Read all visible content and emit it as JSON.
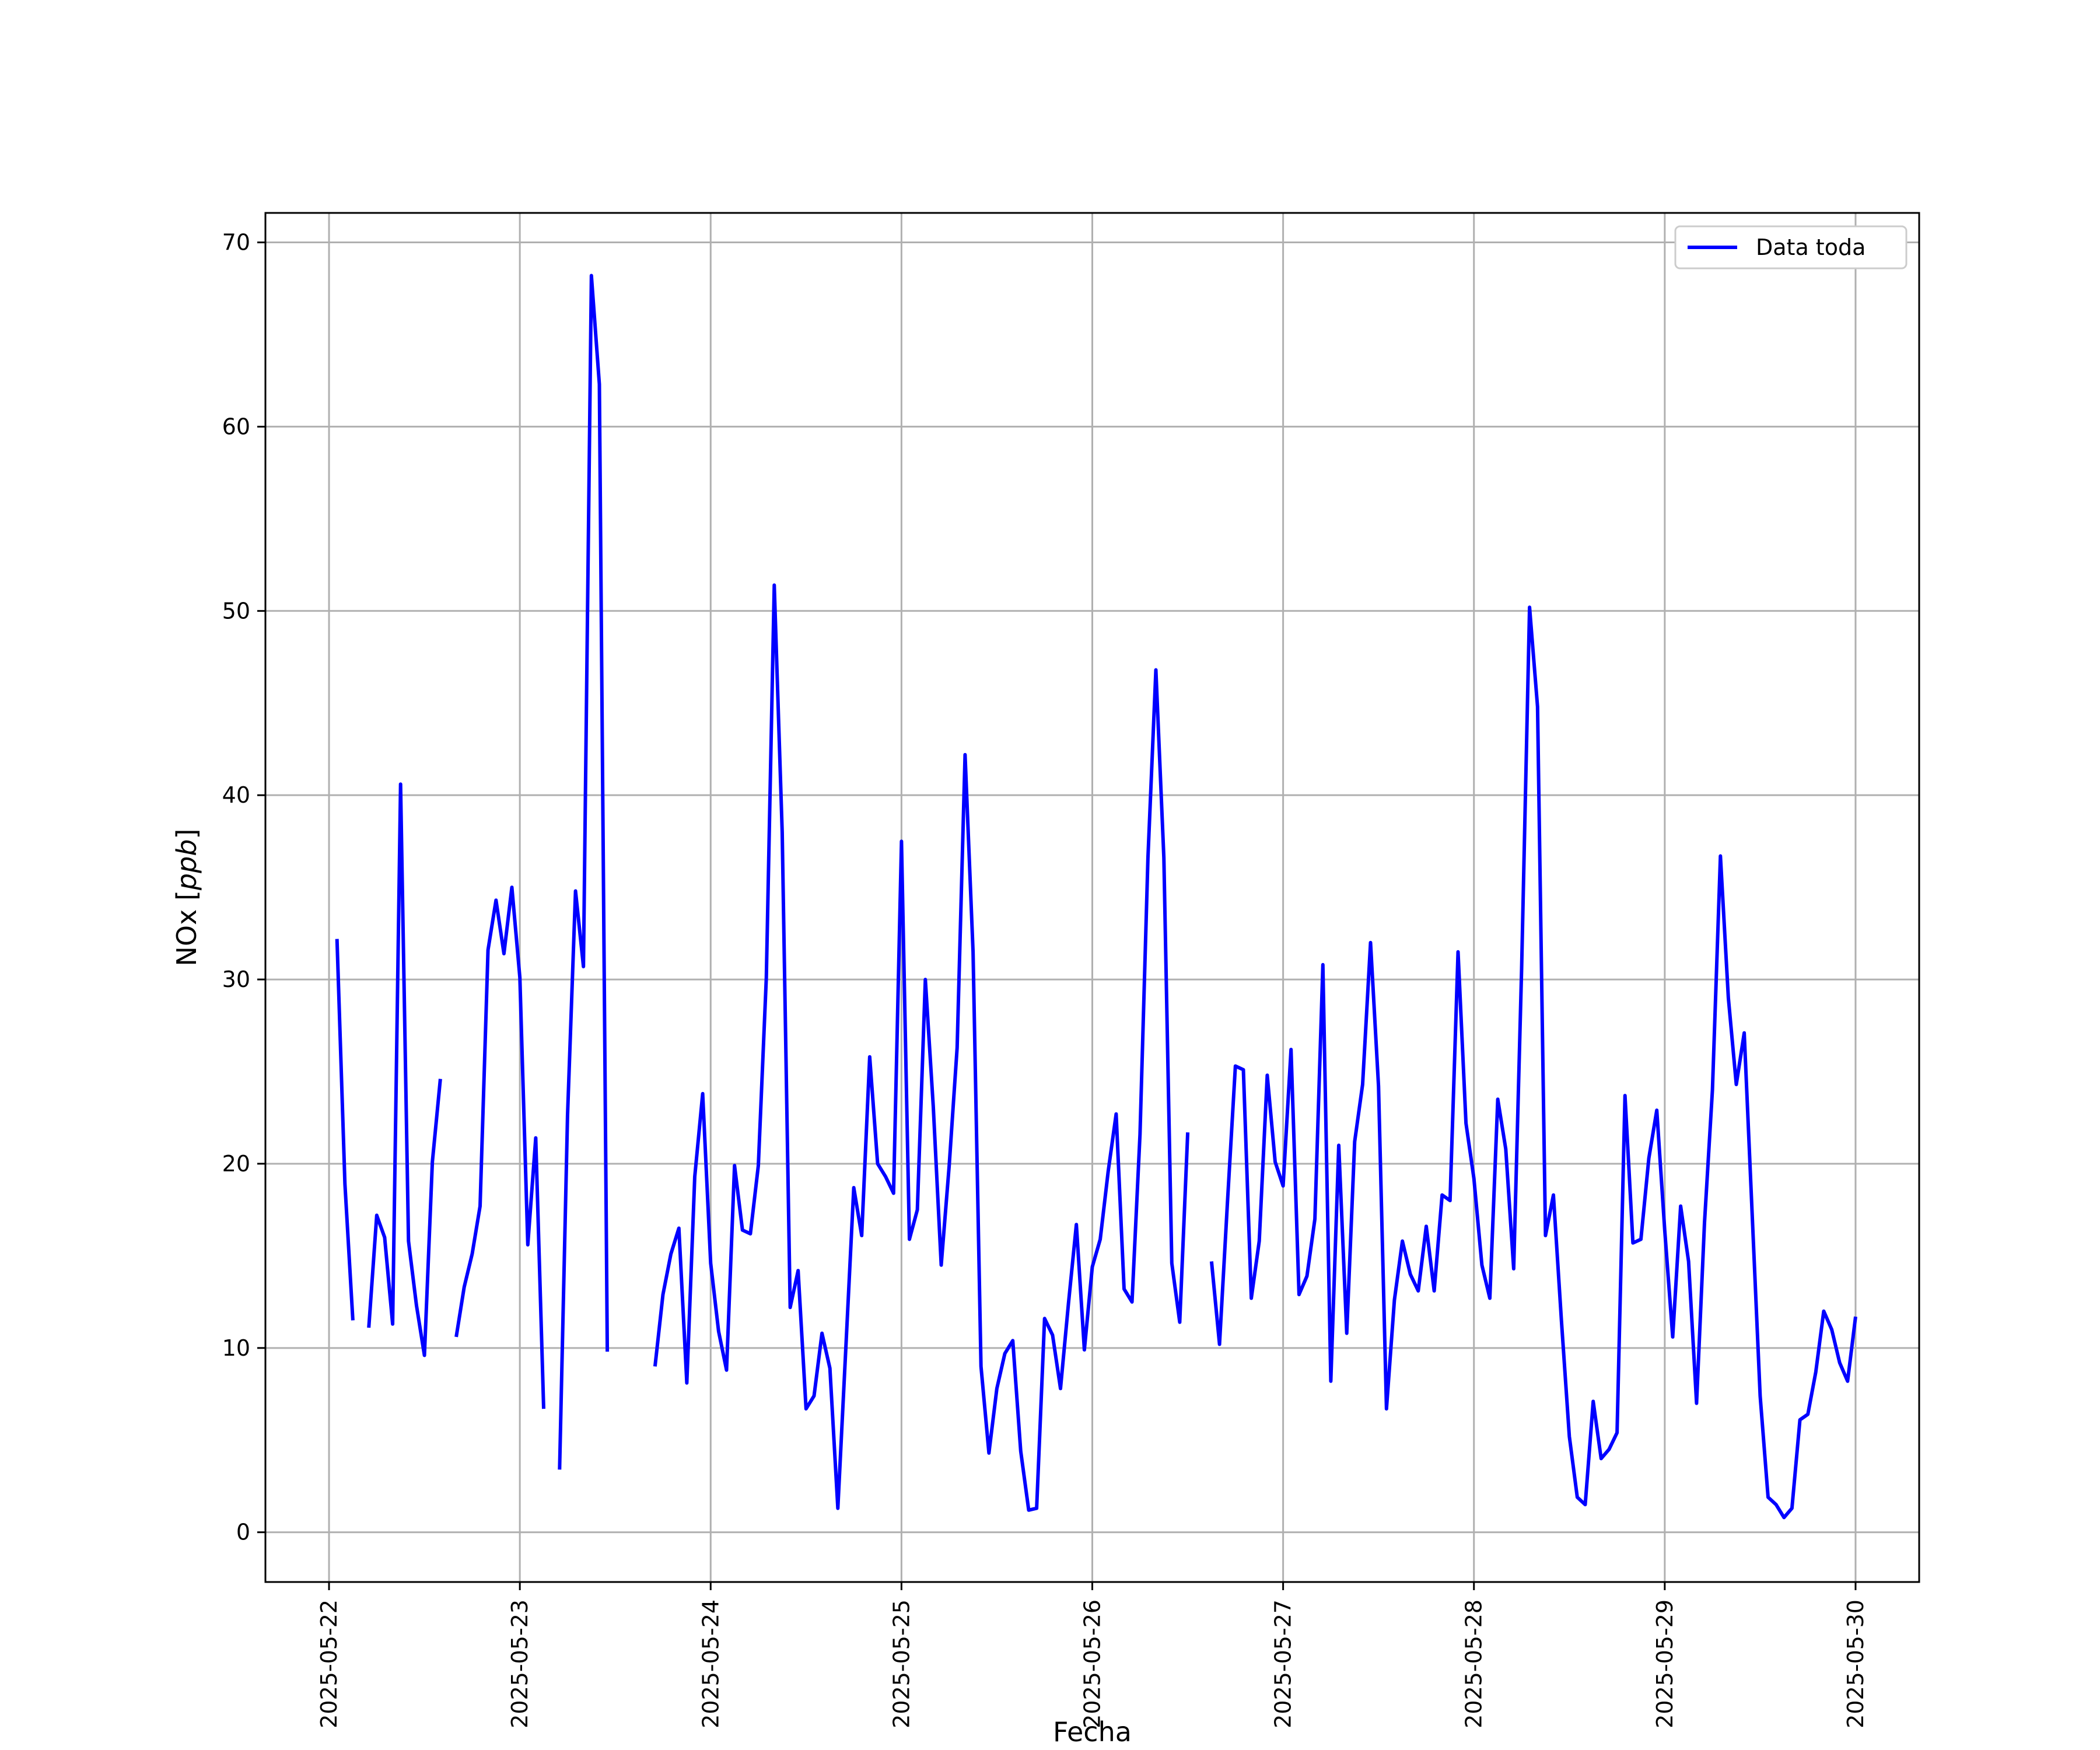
{
  "chart_data": {
    "type": "line",
    "title": "",
    "xlabel": "Fecha",
    "ylabel": "NOx [ppb]",
    "ylabel_parts": {
      "main": "NOx ",
      "open": "[",
      "unit": "ppb",
      "close": "]"
    },
    "x_ticks": [
      "2025-05-22",
      "2025-05-23",
      "2025-05-24",
      "2025-05-25",
      "2025-05-26",
      "2025-05-27",
      "2025-05-28",
      "2025-05-29",
      "2025-05-30"
    ],
    "xlim": [
      "2025-05-21T16:00",
      "2025-05-30T08:00"
    ],
    "y_ticks": [
      0,
      10,
      20,
      30,
      40,
      50,
      60,
      70
    ],
    "ylim": [
      -2.7,
      71.6
    ],
    "grid": true,
    "legend_position": "top-right",
    "colors": {
      "line": "#0000ff",
      "grid": "#b0b0b0",
      "axis": "#000000"
    },
    "series": [
      {
        "name": "Data toda",
        "segments": [
          [
            [
              "2025-05-22T01:00",
              32.2
            ],
            [
              "2025-05-22T02:00",
              18.9
            ],
            [
              "2025-05-22T03:00",
              11.5
            ]
          ],
          [
            [
              "2025-05-22T05:00",
              11.1
            ],
            [
              "2025-05-22T06:00",
              17.2
            ],
            [
              "2025-05-22T07:00",
              16.0
            ],
            [
              "2025-05-22T08:00",
              11.3
            ],
            [
              "2025-05-22T09:00",
              40.6
            ],
            [
              "2025-05-22T10:00",
              15.8
            ],
            [
              "2025-05-22T11:00",
              12.3
            ],
            [
              "2025-05-22T12:00",
              9.6
            ],
            [
              "2025-05-22T13:00",
              20.1
            ],
            [
              "2025-05-22T14:00",
              24.6
            ]
          ],
          [
            [
              "2025-05-22T16:00",
              10.6
            ],
            [
              "2025-05-22T17:00",
              13.3
            ],
            [
              "2025-05-22T18:00",
              15.1
            ],
            [
              "2025-05-22T19:00",
              17.7
            ],
            [
              "2025-05-22T20:00",
              31.6
            ],
            [
              "2025-05-22T21:00",
              34.3
            ],
            [
              "2025-05-22T22:00",
              31.4
            ],
            [
              "2025-05-22T23:00",
              35.0
            ],
            [
              "2025-05-23T00:00",
              30.1
            ],
            [
              "2025-05-23T01:00",
              15.6
            ],
            [
              "2025-05-23T02:00",
              21.4
            ],
            [
              "2025-05-23T03:00",
              6.7
            ]
          ],
          [
            [
              "2025-05-23T05:00",
              3.4
            ],
            [
              "2025-05-23T06:00",
              22.6
            ],
            [
              "2025-05-23T07:00",
              34.8
            ],
            [
              "2025-05-23T08:00",
              30.7
            ],
            [
              "2025-05-23T09:00",
              68.2
            ],
            [
              "2025-05-23T10:00",
              62.3
            ],
            [
              "2025-05-23T11:00",
              9.8
            ]
          ],
          [
            [
              "2025-05-23T17:00",
              9.0
            ],
            [
              "2025-05-23T18:00",
              12.9
            ],
            [
              "2025-05-23T19:00",
              15.1
            ],
            [
              "2025-05-23T20:00",
              16.5
            ],
            [
              "2025-05-23T21:00",
              8.1
            ],
            [
              "2025-05-23T22:00",
              19.3
            ],
            [
              "2025-05-23T23:00",
              23.8
            ],
            [
              "2025-05-24T00:00",
              14.6
            ],
            [
              "2025-05-24T01:00",
              10.9
            ],
            [
              "2025-05-24T02:00",
              8.8
            ],
            [
              "2025-05-24T03:00",
              19.9
            ],
            [
              "2025-05-24T04:00",
              16.4
            ],
            [
              "2025-05-24T05:00",
              16.2
            ],
            [
              "2025-05-24T06:00",
              19.9
            ],
            [
              "2025-05-24T07:00",
              30.1
            ],
            [
              "2025-05-24T08:00",
              51.4
            ],
            [
              "2025-05-24T09:00",
              38.0
            ],
            [
              "2025-05-24T10:00",
              12.2
            ],
            [
              "2025-05-24T11:00",
              14.2
            ],
            [
              "2025-05-24T12:00",
              6.7
            ],
            [
              "2025-05-24T13:00",
              7.4
            ],
            [
              "2025-05-24T14:00",
              10.8
            ],
            [
              "2025-05-24T15:00",
              8.9
            ],
            [
              "2025-05-24T16:00",
              1.3
            ],
            [
              "2025-05-24T17:00",
              10.0
            ],
            [
              "2025-05-24T18:00",
              18.7
            ],
            [
              "2025-05-24T19:00",
              16.1
            ],
            [
              "2025-05-24T20:00",
              25.8
            ],
            [
              "2025-05-24T21:00",
              20.0
            ],
            [
              "2025-05-24T22:00",
              19.3
            ],
            [
              "2025-05-24T23:00",
              18.4
            ],
            [
              "2025-05-25T00:00",
              37.5
            ],
            [
              "2025-05-25T01:00",
              15.9
            ],
            [
              "2025-05-25T02:00",
              17.5
            ],
            [
              "2025-05-25T03:00",
              30.0
            ],
            [
              "2025-05-25T04:00",
              23.1
            ],
            [
              "2025-05-25T05:00",
              14.5
            ],
            [
              "2025-05-25T06:00",
              19.9
            ],
            [
              "2025-05-25T07:00",
              26.3
            ],
            [
              "2025-05-25T08:00",
              42.2
            ],
            [
              "2025-05-25T09:00",
              31.5
            ],
            [
              "2025-05-25T10:00",
              9.0
            ],
            [
              "2025-05-25T11:00",
              4.3
            ],
            [
              "2025-05-25T12:00",
              7.8
            ],
            [
              "2025-05-25T13:00",
              9.7
            ],
            [
              "2025-05-25T14:00",
              10.4
            ],
            [
              "2025-05-25T15:00",
              4.4
            ],
            [
              "2025-05-25T16:00",
              1.2
            ],
            [
              "2025-05-25T17:00",
              1.3
            ],
            [
              "2025-05-25T18:00",
              11.6
            ],
            [
              "2025-05-25T19:00",
              10.7
            ],
            [
              "2025-05-25T20:00",
              7.8
            ],
            [
              "2025-05-25T21:00",
              12.4
            ],
            [
              "2025-05-25T22:00",
              16.7
            ],
            [
              "2025-05-25T23:00",
              9.9
            ],
            [
              "2025-05-26T00:00",
              14.4
            ],
            [
              "2025-05-26T01:00",
              15.9
            ],
            [
              "2025-05-26T02:00",
              19.6
            ],
            [
              "2025-05-26T03:00",
              22.7
            ],
            [
              "2025-05-26T04:00",
              13.2
            ],
            [
              "2025-05-26T05:00",
              12.5
            ],
            [
              "2025-05-26T06:00",
              21.6
            ],
            [
              "2025-05-26T07:00",
              36.6
            ],
            [
              "2025-05-26T08:00",
              46.8
            ],
            [
              "2025-05-26T09:00",
              36.6
            ],
            [
              "2025-05-26T10:00",
              14.6
            ],
            [
              "2025-05-26T11:00",
              11.4
            ],
            [
              "2025-05-26T12:00",
              21.7
            ]
          ],
          [
            [
              "2025-05-26T15:00",
              14.7
            ],
            [
              "2025-05-26T16:00",
              10.2
            ],
            [
              "2025-05-26T17:00",
              17.9
            ],
            [
              "2025-05-26T18:00",
              25.3
            ],
            [
              "2025-05-26T19:00",
              25.1
            ],
            [
              "2025-05-26T20:00",
              12.7
            ],
            [
              "2025-05-26T21:00",
              15.8
            ],
            [
              "2025-05-26T22:00",
              24.8
            ],
            [
              "2025-05-26T23:00",
              20.1
            ],
            [
              "2025-05-27T00:00",
              18.8
            ],
            [
              "2025-05-27T01:00",
              26.2
            ],
            [
              "2025-05-27T02:00",
              12.9
            ],
            [
              "2025-05-27T03:00",
              13.9
            ],
            [
              "2025-05-27T04:00",
              17.0
            ],
            [
              "2025-05-27T05:00",
              30.8
            ],
            [
              "2025-05-27T06:00",
              8.2
            ],
            [
              "2025-05-27T07:00",
              21.0
            ],
            [
              "2025-05-27T08:00",
              10.8
            ],
            [
              "2025-05-27T09:00",
              21.2
            ],
            [
              "2025-05-27T10:00",
              24.3
            ],
            [
              "2025-05-27T11:00",
              32.0
            ],
            [
              "2025-05-27T12:00",
              24.2
            ],
            [
              "2025-05-27T13:00",
              6.7
            ],
            [
              "2025-05-27T14:00",
              12.6
            ],
            [
              "2025-05-27T15:00",
              15.8
            ],
            [
              "2025-05-27T16:00",
              14.0
            ],
            [
              "2025-05-27T17:00",
              13.1
            ],
            [
              "2025-05-27T18:00",
              16.6
            ],
            [
              "2025-05-27T19:00",
              13.1
            ],
            [
              "2025-05-27T20:00",
              18.3
            ],
            [
              "2025-05-27T21:00",
              18.0
            ],
            [
              "2025-05-27T22:00",
              31.5
            ],
            [
              "2025-05-27T23:00",
              22.2
            ],
            [
              "2025-05-28T00:00",
              19.2
            ],
            [
              "2025-05-28T01:00",
              14.5
            ],
            [
              "2025-05-28T02:00",
              12.7
            ],
            [
              "2025-05-28T03:00",
              23.5
            ],
            [
              "2025-05-28T04:00",
              20.8
            ],
            [
              "2025-05-28T05:00",
              14.3
            ],
            [
              "2025-05-28T06:00",
              30.6
            ],
            [
              "2025-05-28T07:00",
              50.2
            ],
            [
              "2025-05-28T08:00",
              44.8
            ],
            [
              "2025-05-28T09:00",
              16.1
            ],
            [
              "2025-05-28T10:00",
              18.3
            ],
            [
              "2025-05-28T11:00",
              11.5
            ],
            [
              "2025-05-28T12:00",
              5.2
            ],
            [
              "2025-05-28T13:00",
              1.9
            ],
            [
              "2025-05-28T14:00",
              1.5
            ],
            [
              "2025-05-28T15:00",
              7.1
            ],
            [
              "2025-05-28T16:00",
              4.0
            ],
            [
              "2025-05-28T17:00",
              4.5
            ],
            [
              "2025-05-28T18:00",
              5.4
            ],
            [
              "2025-05-28T19:00",
              23.7
            ],
            [
              "2025-05-28T20:00",
              15.7
            ],
            [
              "2025-05-28T21:00",
              15.9
            ],
            [
              "2025-05-28T22:00",
              20.3
            ],
            [
              "2025-05-28T23:00",
              22.9
            ],
            [
              "2025-05-29T00:00",
              16.4
            ],
            [
              "2025-05-29T01:00",
              10.6
            ],
            [
              "2025-05-29T02:00",
              17.7
            ],
            [
              "2025-05-29T03:00",
              14.7
            ],
            [
              "2025-05-29T04:00",
              7.0
            ],
            [
              "2025-05-29T05:00",
              16.8
            ],
            [
              "2025-05-29T06:00",
              24.0
            ],
            [
              "2025-05-29T07:00",
              36.7
            ],
            [
              "2025-05-29T08:00",
              29.0
            ],
            [
              "2025-05-29T09:00",
              24.3
            ],
            [
              "2025-05-29T10:00",
              27.1
            ],
            [
              "2025-05-29T11:00",
              17.2
            ],
            [
              "2025-05-29T12:00",
              7.4
            ],
            [
              "2025-05-29T13:00",
              1.9
            ],
            [
              "2025-05-29T14:00",
              1.5
            ],
            [
              "2025-05-29T15:00",
              0.8
            ],
            [
              "2025-05-29T16:00",
              1.3
            ],
            [
              "2025-05-29T17:00",
              6.1
            ],
            [
              "2025-05-29T18:00",
              6.4
            ],
            [
              "2025-05-29T19:00",
              8.7
            ],
            [
              "2025-05-29T20:00",
              12.0
            ],
            [
              "2025-05-29T21:00",
              11.0
            ],
            [
              "2025-05-29T22:00",
              9.2
            ],
            [
              "2025-05-29T23:00",
              8.2
            ],
            [
              "2025-05-30T00:00",
              11.7
            ]
          ]
        ]
      }
    ]
  }
}
